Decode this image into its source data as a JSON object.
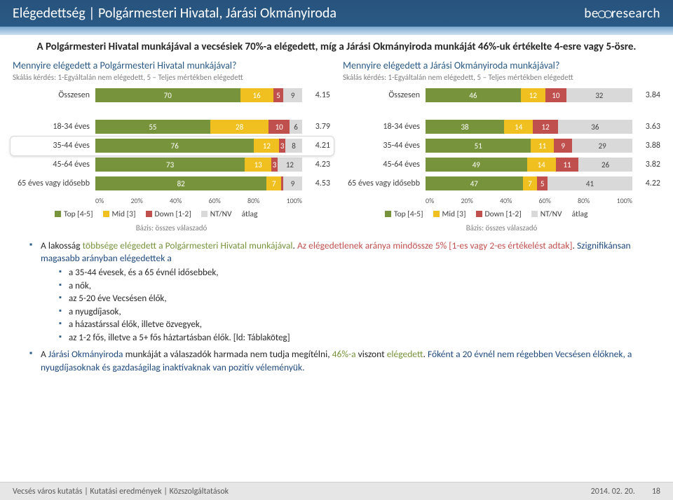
{
  "header": {
    "title": "Elégedettség | Polgármesteri Hivatal, Járási Okmányiroda",
    "brand": "bellresearch"
  },
  "lead": "A Polgármesteri Hivatal munkájával a vecsésiek 70%-a elégedett, míg a Járási Okmányiroda munkáját 46%-uk értékelte 4-esre vagy 5-ösre.",
  "colors": {
    "top": "#77933c",
    "mid": "#f0c020",
    "down": "#c0504d",
    "ntnv": "#d9d9d9",
    "navy": "#2a5a86"
  },
  "axis_ticks": [
    "0%",
    "20%",
    "40%",
    "60%",
    "80%",
    "100%"
  ],
  "legend": {
    "items": [
      {
        "label": "Top [4-5]",
        "color": "#77933c"
      },
      {
        "label": "Mid [3]",
        "color": "#f0c020"
      },
      {
        "label": "Down [1-2]",
        "color": "#c0504d"
      },
      {
        "label": "NT/NV",
        "color": "#d9d9d9"
      }
    ],
    "avg_label": "átlag"
  },
  "basis": "Bázis: összes válaszadó",
  "chart_left": {
    "question": "Mennyire elégedett a Polgármesteri Hivatal munkájával?",
    "scale": "Skálás kérdés: 1-Egyáltalán nem elégedett, 5 – Teljes mértékben elégedett",
    "rows": [
      {
        "label": "Összesen",
        "segs": [
          70,
          16,
          5,
          9
        ],
        "avg": "4.15",
        "gap_after": true
      },
      {
        "label": "18-34 éves",
        "segs": [
          55,
          28,
          10,
          6
        ],
        "avg": "3.79"
      },
      {
        "label": "35-44 éves",
        "segs": [
          76,
          12,
          3,
          8
        ],
        "avg": "4.21",
        "highlight": true
      },
      {
        "label": "45-64 éves",
        "segs": [
          73,
          13,
          3,
          12
        ],
        "avg": "4.23"
      },
      {
        "label": "65 éves vagy idősebb",
        "segs": [
          82,
          7,
          1,
          9
        ],
        "avg": "4.53",
        "hide_small": true
      }
    ]
  },
  "chart_right": {
    "question": "Mennyire elégedett a Járási Okmányiroda munkájával?",
    "scale": "Skálás kérdés: 1-Egyáltalán nem elégedett, 5 – Teljes mértékben elégedett",
    "rows": [
      {
        "label": "Összesen",
        "segs": [
          46,
          12,
          10,
          32
        ],
        "avg": "3.84",
        "gap_after": true
      },
      {
        "label": "18-34 éves",
        "segs": [
          38,
          14,
          12,
          36
        ],
        "avg": "3.63"
      },
      {
        "label": "35-44 éves",
        "segs": [
          51,
          11,
          9,
          29
        ],
        "avg": "3.88"
      },
      {
        "label": "45-64 éves",
        "segs": [
          49,
          14,
          11,
          26
        ],
        "avg": "3.82"
      },
      {
        "label": "65 éves vagy idősebb",
        "segs": [
          47,
          7,
          5,
          41
        ],
        "avg": "4.22"
      }
    ]
  },
  "bullets": {
    "b1_a": "A lakosság ",
    "b1_b": "többsége elégedett a Polgármesteri Hivatal munkájával",
    "b1_c": ". ",
    "b1_d": "Az elégedetlenek aránya mindössze 5% [1-es vagy 2-es értékelést adtak]",
    "b1_e": ". ",
    "b1_f": "Szignifikánsan magasabb arányban elégedettek a",
    "sub": [
      "a 35-44 évesek, és a 65 évnél idősebbek,",
      "a nők,",
      "az 5-20 éve Vecsésen élők,",
      "a nyugdíjasok,",
      "a házastárssal élők, illetve özvegyek,",
      "az 1-2 fős, illetve a 5+ fős háztartásban élők. [ld: Táblaköteg]"
    ],
    "b2_a": "A ",
    "b2_b": "Járási Okmányiroda",
    "b2_c": " munkáját a válaszadók harmada nem tudja megítélni, ",
    "b2_d": "46%-a",
    "b2_e": " viszont ",
    "b2_f": "elégedett",
    "b2_g": ". ",
    "b2_h": "Főként a 20 évnél nem régebben Vecsésen élőknek, a nyugdíjasoknak és gazdaságilag inaktívaknak van pozitív véleményük."
  },
  "footer": {
    "left": "Vecsés város kutatás | Kutatási eredmények | Közszolgáltatások",
    "date": "2014. 02. 20.",
    "page": "18"
  }
}
